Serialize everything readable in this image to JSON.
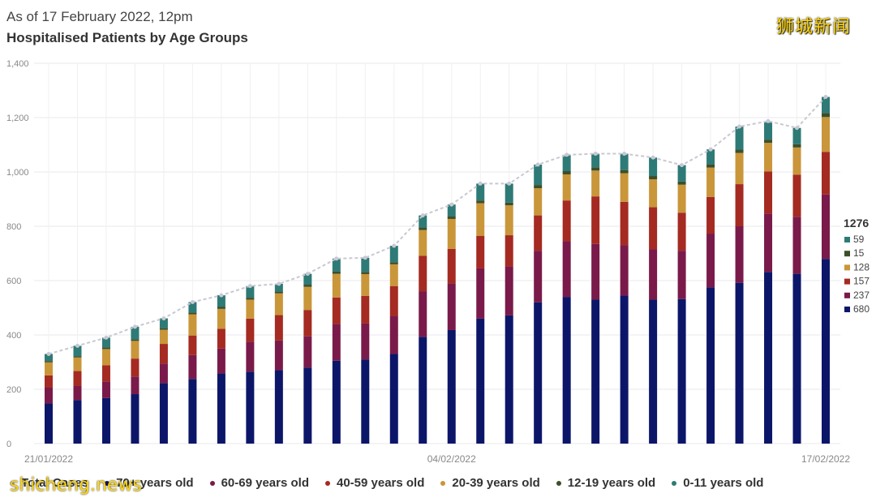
{
  "header": {
    "subtitle": "As of 17 February 2022, 12pm",
    "title": "Hospitalised Patients by Age Groups",
    "brand": "狮城新闻"
  },
  "watermark": "shicheng.news",
  "colors": {
    "70+": "#0c1669",
    "60-69": "#7a1a4a",
    "40-59": "#a52a22",
    "20-39": "#c9963a",
    "12-19": "#3c4f2a",
    "0-11": "#2e7a76",
    "total_line": "#c8c8d2",
    "grid": "#e8e8ee"
  },
  "chart_data": {
    "type": "bar",
    "stacked": true,
    "title": "Hospitalised Patients by Age Groups",
    "subtitle": "As of 17 February 2022, 12pm",
    "ylim": [
      0,
      1400
    ],
    "yticks": [
      0,
      200,
      400,
      600,
      800,
      "1,000",
      "1,200",
      "1,400"
    ],
    "x_labels": [
      "21/01/2022",
      "04/02/2022",
      "17/02/2022"
    ],
    "categories": [
      "21/01",
      "22/01",
      "23/01",
      "24/01",
      "25/01",
      "26/01",
      "27/01",
      "28/01",
      "29/01",
      "30/01",
      "31/01",
      "01/02",
      "02/02",
      "03/02",
      "04/02",
      "05/02",
      "06/02",
      "07/02",
      "08/02",
      "09/02",
      "10/02",
      "11/02",
      "12/02",
      "13/02",
      "14/02",
      "15/02",
      "16/02",
      "17/02"
    ],
    "series": [
      {
        "name": "70+ years old",
        "key": "70+",
        "values": [
          148,
          160,
          168,
          182,
          223,
          238,
          258,
          265,
          270,
          280,
          305,
          310,
          330,
          393,
          418,
          460,
          472,
          520,
          540,
          530,
          545,
          530,
          532,
          575,
          592,
          632,
          625,
          680
        ]
      },
      {
        "name": "60-69 years old",
        "key": "60-69",
        "values": [
          58,
          52,
          60,
          65,
          72,
          88,
          92,
          110,
          110,
          115,
          135,
          132,
          140,
          168,
          172,
          185,
          180,
          190,
          205,
          205,
          185,
          185,
          178,
          198,
          208,
          215,
          210,
          237
        ]
      },
      {
        "name": "40-59 years old",
        "key": "40-59",
        "values": [
          45,
          55,
          60,
          66,
          72,
          72,
          73,
          85,
          93,
          97,
          98,
          102,
          110,
          130,
          127,
          120,
          115,
          130,
          150,
          175,
          160,
          155,
          140,
          135,
          155,
          155,
          155,
          157
        ]
      },
      {
        "name": "20-39 years old",
        "key": "20-39",
        "values": [
          48,
          50,
          60,
          65,
          52,
          78,
          73,
          70,
          80,
          85,
          87,
          80,
          80,
          95,
          110,
          120,
          110,
          100,
          96,
          95,
          105,
          103,
          103,
          108,
          115,
          105,
          100,
          128
        ]
      },
      {
        "name": "12-19 years old",
        "key": "12-19",
        "values": [
          5,
          5,
          6,
          6,
          6,
          7,
          7,
          7,
          7,
          8,
          8,
          8,
          8,
          10,
          10,
          10,
          10,
          12,
          12,
          12,
          12,
          12,
          12,
          12,
          12,
          12,
          12,
          15
        ]
      },
      {
        "name": "0-11 years old",
        "key": "0-11",
        "values": [
          26,
          38,
          36,
          46,
          36,
          38,
          43,
          43,
          28,
          40,
          48,
          52,
          60,
          44,
          43,
          62,
          70,
          75,
          60,
          50,
          60,
          68,
          60,
          55,
          85,
          68,
          60,
          59
        ]
      }
    ],
    "total": {
      "name": "Total Cases",
      "values": [
        330,
        360,
        390,
        430,
        461,
        521,
        546,
        580,
        588,
        625,
        681,
        684,
        728,
        840,
        880,
        957,
        957,
        1027,
        1063,
        1067,
        1067,
        1053,
        1025,
        1083,
        1167,
        1187,
        1162,
        1276
      ]
    },
    "end_labels": {
      "total": "1276",
      "0-11": "59",
      "12-19": "15",
      "20-39": "128",
      "40-59": "157",
      "60-69": "237",
      "70+": "680"
    }
  },
  "legend": [
    {
      "label": "Total Cases",
      "key": "total"
    },
    {
      "label": "70+ years old",
      "key": "70+"
    },
    {
      "label": "60-69 years old",
      "key": "60-69"
    },
    {
      "label": "40-59 years old",
      "key": "40-59"
    },
    {
      "label": "20-39 years old",
      "key": "20-39"
    },
    {
      "label": "12-19 years old",
      "key": "12-19"
    },
    {
      "label": "0-11 years old",
      "key": "0-11"
    }
  ]
}
